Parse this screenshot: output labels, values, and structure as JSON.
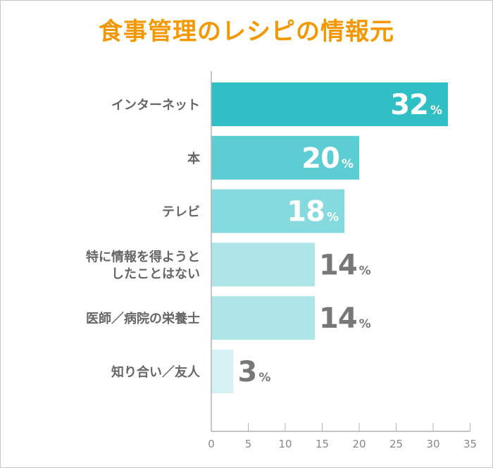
{
  "chart_data": {
    "type": "bar",
    "orientation": "horizontal",
    "title": "食事管理のレシピの情報元",
    "categories": [
      [
        "インターネット"
      ],
      [
        "本"
      ],
      [
        "テレビ"
      ],
      [
        "特に情報を得ようと",
        "したことはない"
      ],
      [
        "医師／病院の栄養士"
      ],
      [
        "知り合い／友人"
      ]
    ],
    "values": [
      32,
      20,
      18,
      14,
      14,
      3
    ],
    "unit": "%",
    "colors": [
      "#2fbfc5",
      "#5ccdd3",
      "#85dade",
      "#aee5e8",
      "#aee5e8",
      "#d6f2f4"
    ],
    "xlim": [
      0,
      35
    ],
    "xticks": [
      0,
      5,
      10,
      15,
      20,
      25,
      30,
      35
    ],
    "grid": false,
    "xlabel": "",
    "ylabel": ""
  }
}
